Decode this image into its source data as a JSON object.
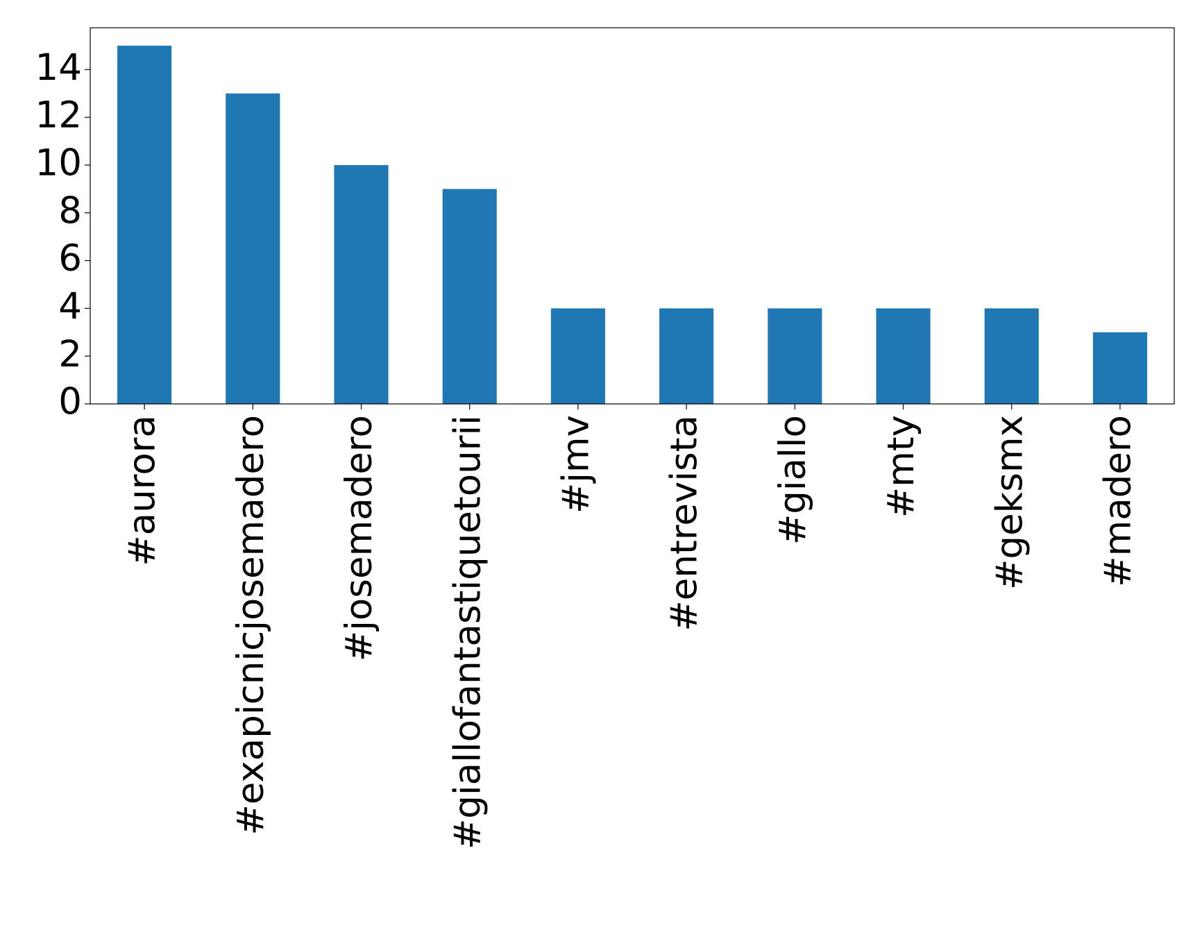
{
  "chart_data": {
    "type": "bar",
    "categories": [
      "#aurora",
      "#exapicnicjosemadero",
      "#josemadero",
      "#giallofantastiquetourii",
      "#jmv",
      "#entrevista",
      "#giallo",
      "#mty",
      "#geksmx",
      "#madero"
    ],
    "values": [
      15,
      13,
      10,
      9,
      4,
      4,
      4,
      4,
      4,
      3
    ],
    "color": "#1f77b4",
    "ylim": [
      0,
      15.75
    ],
    "yticks": [
      0,
      2,
      4,
      6,
      8,
      10,
      12,
      14
    ],
    "grid": false
  }
}
